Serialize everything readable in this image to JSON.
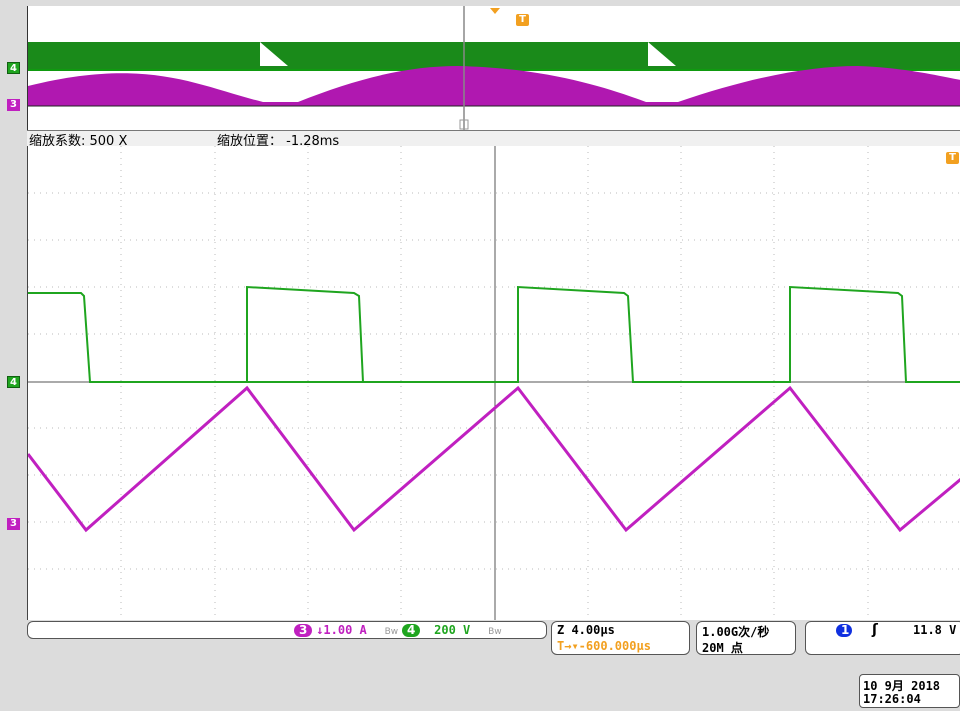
{
  "colors": {
    "ch4": "#1fa51f",
    "ch3": "#c020c0",
    "ch1": "#1030e0",
    "trigger": "#f2a020",
    "background": "#dcdcdc",
    "screen": "#ffffff"
  },
  "markers": {
    "ch4": "4",
    "ch3": "3",
    "ch1": "1",
    "trigger": "T"
  },
  "zoom": {
    "factor_label": "缩放系数: 500 X",
    "position_label": "缩放位置： -1.28ms"
  },
  "channels": {
    "ch3_scale": "↓1.00 A",
    "ch4_scale": "200 V",
    "bw_limit_icon": "Bw"
  },
  "horizontal": {
    "timebase": "Z 4.00μs",
    "trigger_delay": "T→▾-600.000μs"
  },
  "acquisition": {
    "sample_rate": "1.00G次/秒",
    "record_length": "20M 点"
  },
  "trigger": {
    "edge_icon": "rising-edge-icon",
    "level": "11.8 V"
  },
  "datetime": {
    "date": "10 9月  2018",
    "time": "17:26:04"
  }
}
